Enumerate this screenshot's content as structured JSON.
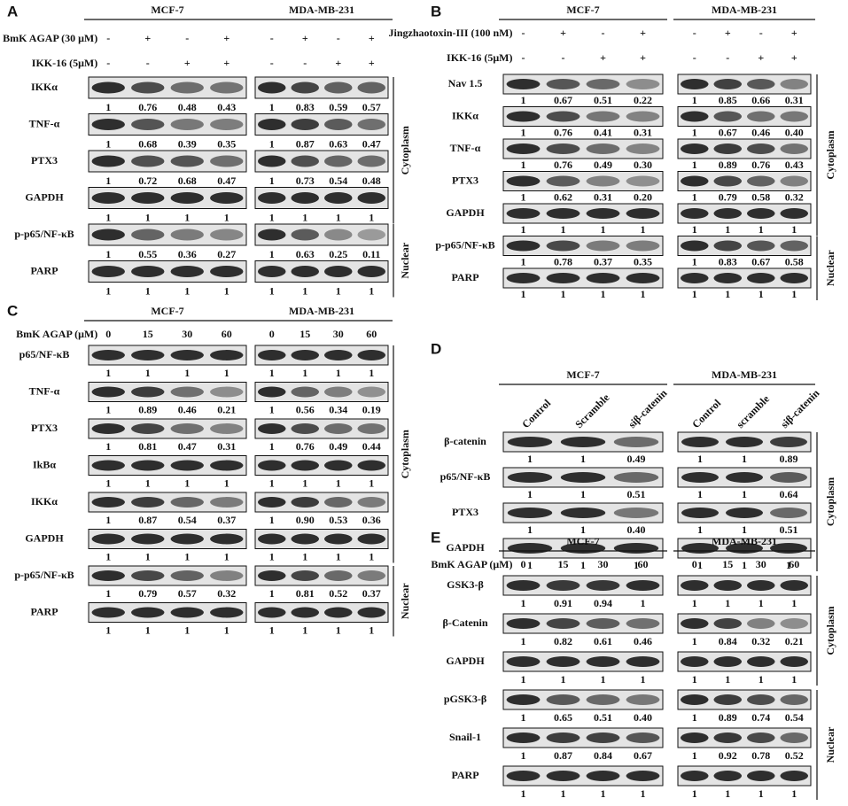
{
  "panels": [
    {
      "letter": "A",
      "groups": [
        "MCF-7",
        "MDA-MB-231"
      ],
      "conditions": [
        {
          "label": "BmK AGAP (30 μM)",
          "values": [
            [
              "-",
              "+",
              "-",
              "+"
            ],
            [
              "-",
              "+",
              "-",
              "+"
            ]
          ]
        },
        {
          "label": "IKK-16 (5μM)",
          "values": [
            [
              "-",
              "-",
              "+",
              "+"
            ],
            [
              "-",
              "-",
              "+",
              "+"
            ]
          ]
        }
      ],
      "sections": [
        {
          "label": "Cytoplasm",
          "blots": [
            {
              "label": "IKKα",
              "values": [
                [
                  "1",
                  "0.76",
                  "0.48",
                  "0.43"
                ],
                [
                  "1",
                  "0.83",
                  "0.59",
                  "0.57"
                ]
              ]
            },
            {
              "label": "TNF-α",
              "values": [
                [
                  "1",
                  "0.68",
                  "0.39",
                  "0.35"
                ],
                [
                  "1",
                  "0.87",
                  "0.63",
                  "0.47"
                ]
              ]
            },
            {
              "label": "PTX3",
              "values": [
                [
                  "1",
                  "0.72",
                  "0.68",
                  "0.47"
                ],
                [
                  "1",
                  "0.73",
                  "0.54",
                  "0.48"
                ]
              ]
            },
            {
              "label": "GAPDH",
              "values": [
                [
                  "1",
                  "1",
                  "1",
                  "1"
                ],
                [
                  "1",
                  "1",
                  "1",
                  "1"
                ]
              ]
            }
          ]
        },
        {
          "label": "Nuclear",
          "blots": [
            {
              "label": "p-p65/NF-κB",
              "values": [
                [
                  "1",
                  "0.55",
                  "0.36",
                  "0.27"
                ],
                [
                  "1",
                  "0.63",
                  "0.25",
                  "0.11"
                ]
              ]
            },
            {
              "label": "PARP",
              "values": [
                [
                  "1",
                  "1",
                  "1",
                  "1"
                ],
                [
                  "1",
                  "1",
                  "1",
                  "1"
                ]
              ]
            }
          ]
        }
      ]
    },
    {
      "letter": "B",
      "groups": [
        "MCF-7",
        "MDA-MB-231"
      ],
      "conditions": [
        {
          "label": "Jingzhaotoxin-III (100 nM)",
          "values": [
            [
              "-",
              "+",
              "-",
              "+"
            ],
            [
              "-",
              "+",
              "-",
              "+"
            ]
          ]
        },
        {
          "label": "IKK-16 (5μM)",
          "values": [
            [
              "-",
              "-",
              "+",
              "+"
            ],
            [
              "-",
              "-",
              "+",
              "+"
            ]
          ]
        }
      ],
      "sections": [
        {
          "label": "Cytoplasm",
          "blots": [
            {
              "label": "Nav 1.5",
              "values": [
                [
                  "1",
                  "0.67",
                  "0.51",
                  "0.22"
                ],
                [
                  "1",
                  "0.85",
                  "0.66",
                  "0.31"
                ]
              ]
            },
            {
              "label": "IKKα",
              "values": [
                [
                  "1",
                  "0.76",
                  "0.41",
                  "0.31"
                ],
                [
                  "1",
                  "0.67",
                  "0.46",
                  "0.40"
                ]
              ]
            },
            {
              "label": "TNF-α",
              "values": [
                [
                  "1",
                  "0.76",
                  "0.49",
                  "0.30"
                ],
                [
                  "1",
                  "0.89",
                  "0.76",
                  "0.43"
                ]
              ]
            },
            {
              "label": "PTX3",
              "values": [
                [
                  "1",
                  "0.62",
                  "0.31",
                  "0.20"
                ],
                [
                  "1",
                  "0.79",
                  "0.58",
                  "0.32"
                ]
              ]
            },
            {
              "label": "GAPDH",
              "values": [
                [
                  "1",
                  "1",
                  "1",
                  "1"
                ],
                [
                  "1",
                  "1",
                  "1",
                  "1"
                ]
              ]
            }
          ]
        },
        {
          "label": "Nuclear",
          "blots": [
            {
              "label": "p-p65/NF-κB",
              "values": [
                [
                  "1",
                  "0.78",
                  "0.37",
                  "0.35"
                ],
                [
                  "1",
                  "0.83",
                  "0.67",
                  "0.58"
                ]
              ]
            },
            {
              "label": "PARP",
              "values": [
                [
                  "1",
                  "1",
                  "1",
                  "1"
                ],
                [
                  "1",
                  "1",
                  "1",
                  "1"
                ]
              ]
            }
          ]
        }
      ]
    },
    {
      "letter": "C",
      "groups": [
        "MCF-7",
        "MDA-MB-231"
      ],
      "conditions": [
        {
          "label": "BmK AGAP (μM)",
          "values": [
            [
              "0",
              "15",
              "30",
              "60"
            ],
            [
              "0",
              "15",
              "30",
              "60"
            ]
          ]
        }
      ],
      "sections": [
        {
          "label": "Cytoplasm",
          "blots": [
            {
              "label": "p65/NF-κB",
              "values": [
                [
                  "1",
                  "1",
                  "1",
                  "1"
                ],
                [
                  "1",
                  "1",
                  "1",
                  "1"
                ]
              ]
            },
            {
              "label": "TNF-α",
              "values": [
                [
                  "1",
                  "0.89",
                  "0.46",
                  "0.21"
                ],
                [
                  "1",
                  "0.56",
                  "0.34",
                  "0.19"
                ]
              ]
            },
            {
              "label": "PTX3",
              "values": [
                [
                  "1",
                  "0.81",
                  "0.47",
                  "0.31"
                ],
                [
                  "1",
                  "0.76",
                  "0.49",
                  "0.44"
                ]
              ]
            },
            {
              "label": "IkBα",
              "values": [
                [
                  "1",
                  "1",
                  "1",
                  "1"
                ],
                [
                  "1",
                  "1",
                  "1",
                  "1"
                ]
              ]
            },
            {
              "label": "IKKα",
              "values": [
                [
                  "1",
                  "0.87",
                  "0.54",
                  "0.37"
                ],
                [
                  "1",
                  "0.90",
                  "0.53",
                  "0.36"
                ]
              ]
            },
            {
              "label": "GAPDH",
              "values": [
                [
                  "1",
                  "1",
                  "1",
                  "1"
                ],
                [
                  "1",
                  "1",
                  "1",
                  "1"
                ]
              ]
            }
          ]
        },
        {
          "label": "Nuclear",
          "blots": [
            {
              "label": "p-p65/NF-κB",
              "values": [
                [
                  "1",
                  "0.79",
                  "0.57",
                  "0.32"
                ],
                [
                  "1",
                  "0.81",
                  "0.52",
                  "0.37"
                ]
              ]
            },
            {
              "label": "PARP",
              "values": [
                [
                  "1",
                  "1",
                  "1",
                  "1"
                ],
                [
                  "1",
                  "1",
                  "1",
                  "1"
                ]
              ]
            }
          ]
        }
      ]
    },
    {
      "letter": "D",
      "groups": [
        "MCF-7",
        "MDA-MB-231"
      ],
      "lane_labels": [
        [
          "Control",
          "Scramble",
          "siβ-catenin"
        ],
        [
          "Control",
          "scramble",
          "siβ-catenin"
        ]
      ],
      "sections": [
        {
          "label": "Cytoplasm",
          "blots": [
            {
              "label": "β-catenin",
              "values": [
                [
                  "1",
                  "1",
                  "0.49"
                ],
                [
                  "1",
                  "1",
                  "0.89"
                ]
              ]
            },
            {
              "label": "p65/NF-κB",
              "values": [
                [
                  "1",
                  "1",
                  "0.51"
                ],
                [
                  "1",
                  "1",
                  "0.64"
                ]
              ]
            },
            {
              "label": "PTX3",
              "values": [
                [
                  "1",
                  "1",
                  "0.40"
                ],
                [
                  "1",
                  "1",
                  "0.51"
                ]
              ]
            },
            {
              "label": "GAPDH",
              "values": [
                [
                  "1",
                  "1",
                  "1"
                ],
                [
                  "1",
                  "1",
                  "1"
                ]
              ]
            }
          ]
        }
      ]
    },
    {
      "letter": "E",
      "groups": [
        "MCF-7",
        "MDA-MB-231"
      ],
      "conditions": [
        {
          "label": "BmK AGAP (μM)",
          "values": [
            [
              "0",
              "15",
              "30",
              "60"
            ],
            [
              "0",
              "15",
              "30",
              "60"
            ]
          ]
        }
      ],
      "sections": [
        {
          "label": "Cytoplasm",
          "blots": [
            {
              "label": "GSK3-β",
              "values": [
                [
                  "1",
                  "0.91",
                  "0.94",
                  "1"
                ],
                [
                  "1",
                  "1",
                  "1",
                  "1"
                ]
              ]
            },
            {
              "label": "β-Catenin",
              "values": [
                [
                  "1",
                  "0.82",
                  "0.61",
                  "0.46"
                ],
                [
                  "1",
                  "0.84",
                  "0.32",
                  "0.21"
                ]
              ]
            },
            {
              "label": "GAPDH",
              "values": [
                [
                  "1",
                  "1",
                  "1",
                  "1"
                ],
                [
                  "1",
                  "1",
                  "1",
                  "1"
                ]
              ]
            }
          ]
        },
        {
          "label": "Nuclear",
          "blots": [
            {
              "label": "pGSK3-β",
              "values": [
                [
                  "1",
                  "0.65",
                  "0.51",
                  "0.40"
                ],
                [
                  "1",
                  "0.89",
                  "0.74",
                  "0.54"
                ]
              ]
            },
            {
              "label": "Snail-1",
              "values": [
                [
                  "1",
                  "0.87",
                  "0.84",
                  "0.67"
                ],
                [
                  "1",
                  "0.92",
                  "0.78",
                  "0.52"
                ]
              ]
            },
            {
              "label": "PARP",
              "values": [
                [
                  "1",
                  "1",
                  "1",
                  "1"
                ],
                [
                  "1",
                  "1",
                  "1",
                  "1"
                ]
              ]
            }
          ]
        }
      ]
    }
  ]
}
